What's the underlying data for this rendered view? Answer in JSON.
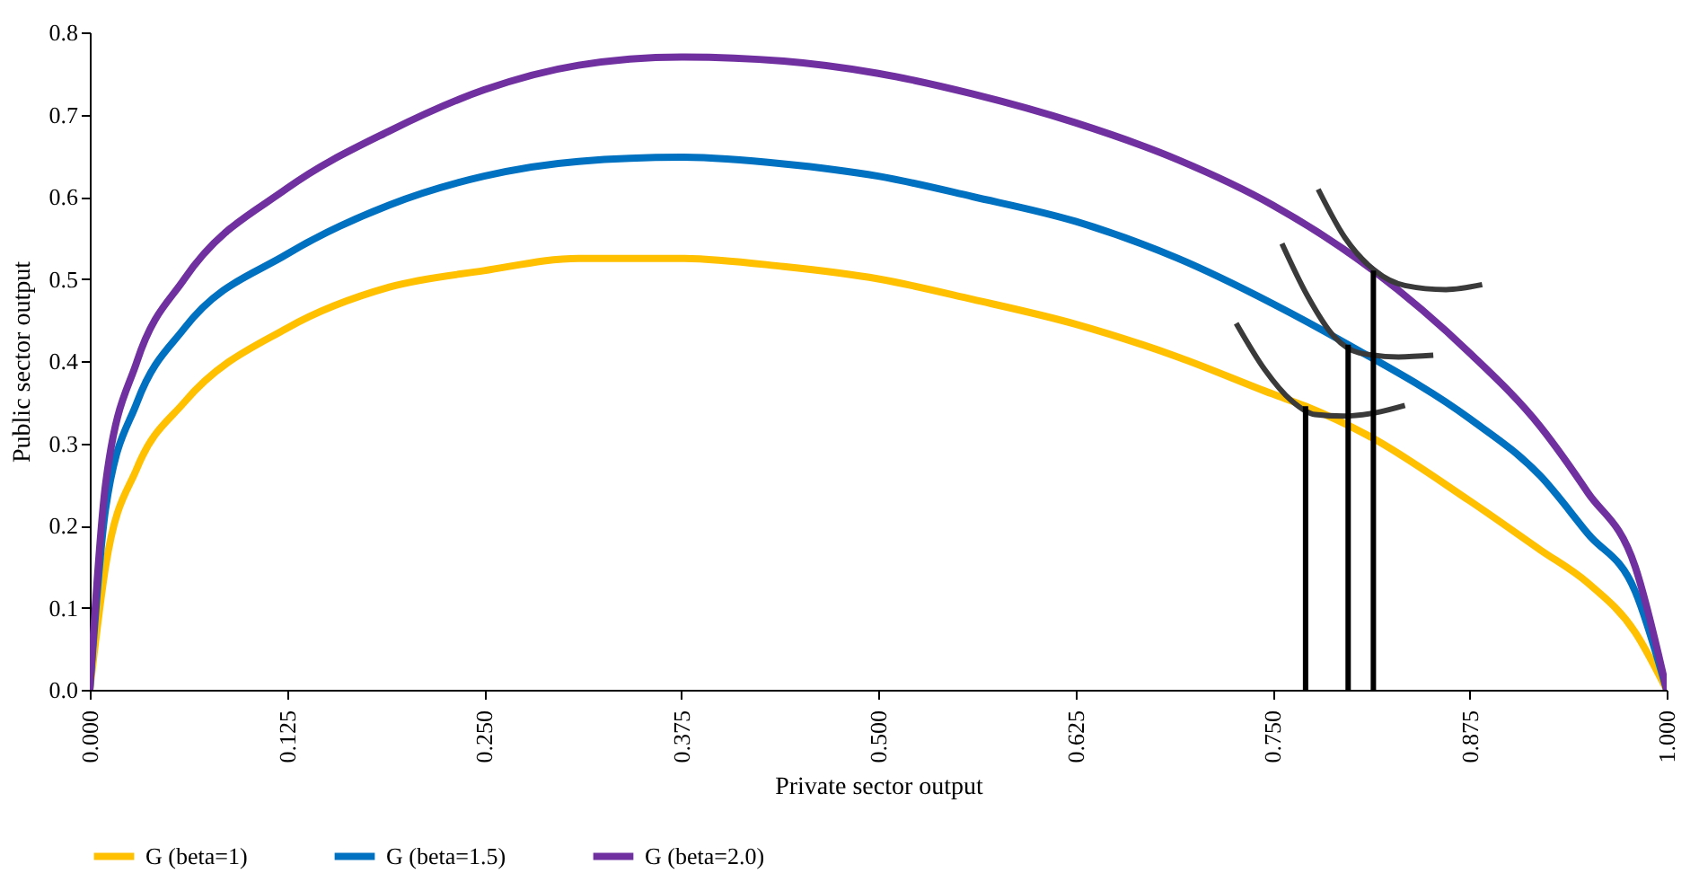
{
  "chart_data": {
    "type": "line",
    "xlabel": "Private sector output",
    "ylabel": "Public sector output",
    "xlim": [
      0,
      1
    ],
    "ylim": [
      0,
      0.8
    ],
    "xticks": [
      {
        "value": 0,
        "label": "0.000"
      },
      {
        "value": 0.125,
        "label": "0.125"
      },
      {
        "value": 0.25,
        "label": "0.250"
      },
      {
        "value": 0.375,
        "label": "0.375"
      },
      {
        "value": 0.5,
        "label": "0.500"
      },
      {
        "value": 0.625,
        "label": "0.625"
      },
      {
        "value": 0.75,
        "label": "0.750"
      },
      {
        "value": 0.875,
        "label": "0.875"
      },
      {
        "value": 1,
        "label": "1.000"
      }
    ],
    "yticks": [
      {
        "value": 0,
        "label": "0.0"
      },
      0.1,
      0.2,
      0.3,
      0.4,
      0.5,
      0.6,
      0.7,
      0.8
    ],
    "grid": false,
    "legend": "bottom",
    "marker": "none",
    "line_style": "solid",
    "series": [
      {
        "name": "G (beta=1)",
        "color": "#ffc000",
        "x": [
          0,
          0.01,
          0.03,
          0.06,
          0.125,
          0.19,
          0.25,
          0.31,
          0.375,
          0.44,
          0.5,
          0.56,
          0.625,
          0.69,
          0.75,
          0.771,
          0.81,
          0.875,
          0.92,
          0.95,
          0.98,
          1
        ],
        "values": [
          0,
          0.15,
          0.27,
          0.35,
          0.44,
          0.49,
          0.51,
          0.525,
          0.525,
          0.515,
          0.5,
          0.475,
          0.445,
          0.405,
          0.36,
          0.345,
          0.31,
          0.23,
          0.17,
          0.13,
          0.07,
          0
        ]
      },
      {
        "name": "G (beta=1.5)",
        "color": "#0070c0",
        "x": [
          0,
          0.01,
          0.03,
          0.06,
          0.125,
          0.19,
          0.25,
          0.31,
          0.375,
          0.44,
          0.5,
          0.56,
          0.625,
          0.69,
          0.75,
          0.798,
          0.875,
          0.92,
          0.95,
          0.98,
          1
        ],
        "values": [
          0,
          0.22,
          0.35,
          0.44,
          0.53,
          0.59,
          0.625,
          0.643,
          0.648,
          0.64,
          0.625,
          0.6,
          0.57,
          0.525,
          0.47,
          0.42,
          0.33,
          0.26,
          0.19,
          0.12,
          0
        ]
      },
      {
        "name": "G (beta=2.0)",
        "color": "#7030a0",
        "x": [
          0,
          0.01,
          0.03,
          0.06,
          0.125,
          0.19,
          0.25,
          0.31,
          0.375,
          0.44,
          0.5,
          0.56,
          0.625,
          0.69,
          0.75,
          0.814,
          0.875,
          0.92,
          0.95,
          0.98,
          1
        ],
        "values": [
          0,
          0.25,
          0.4,
          0.5,
          0.61,
          0.68,
          0.73,
          0.76,
          0.77,
          0.765,
          0.75,
          0.725,
          0.69,
          0.645,
          0.59,
          0.51,
          0.41,
          0.32,
          0.24,
          0.15,
          0
        ]
      },
      {
        "color": "#3a3a3a",
        "x": [
          0.727,
          0.745,
          0.762,
          0.777,
          0.795,
          0.815,
          0.834
        ],
        "values": [
          0.446,
          0.39,
          0.352,
          0.335,
          0.333,
          0.337,
          0.346
        ]
      },
      {
        "color": "#3a3a3a",
        "x": [
          0.756,
          0.772,
          0.789,
          0.805,
          0.83,
          0.852
        ],
        "values": [
          0.543,
          0.48,
          0.43,
          0.41,
          0.405,
          0.407
        ]
      },
      {
        "color": "#3a3a3a",
        "x": [
          0.779,
          0.796,
          0.815,
          0.834,
          0.86,
          0.883
        ],
        "values": [
          0.609,
          0.55,
          0.51,
          0.492,
          0.487,
          0.493
        ]
      },
      {
        "color": "#000000",
        "x": [
          0.771,
          0.771
        ],
        "values": [
          0,
          0.345
        ]
      },
      {
        "color": "#000000",
        "x": [
          0.798,
          0.798
        ],
        "values": [
          0,
          0.42
        ]
      },
      {
        "color": "#000000",
        "x": [
          0.814,
          0.814
        ],
        "values": [
          0,
          0.51
        ]
      }
    ]
  }
}
